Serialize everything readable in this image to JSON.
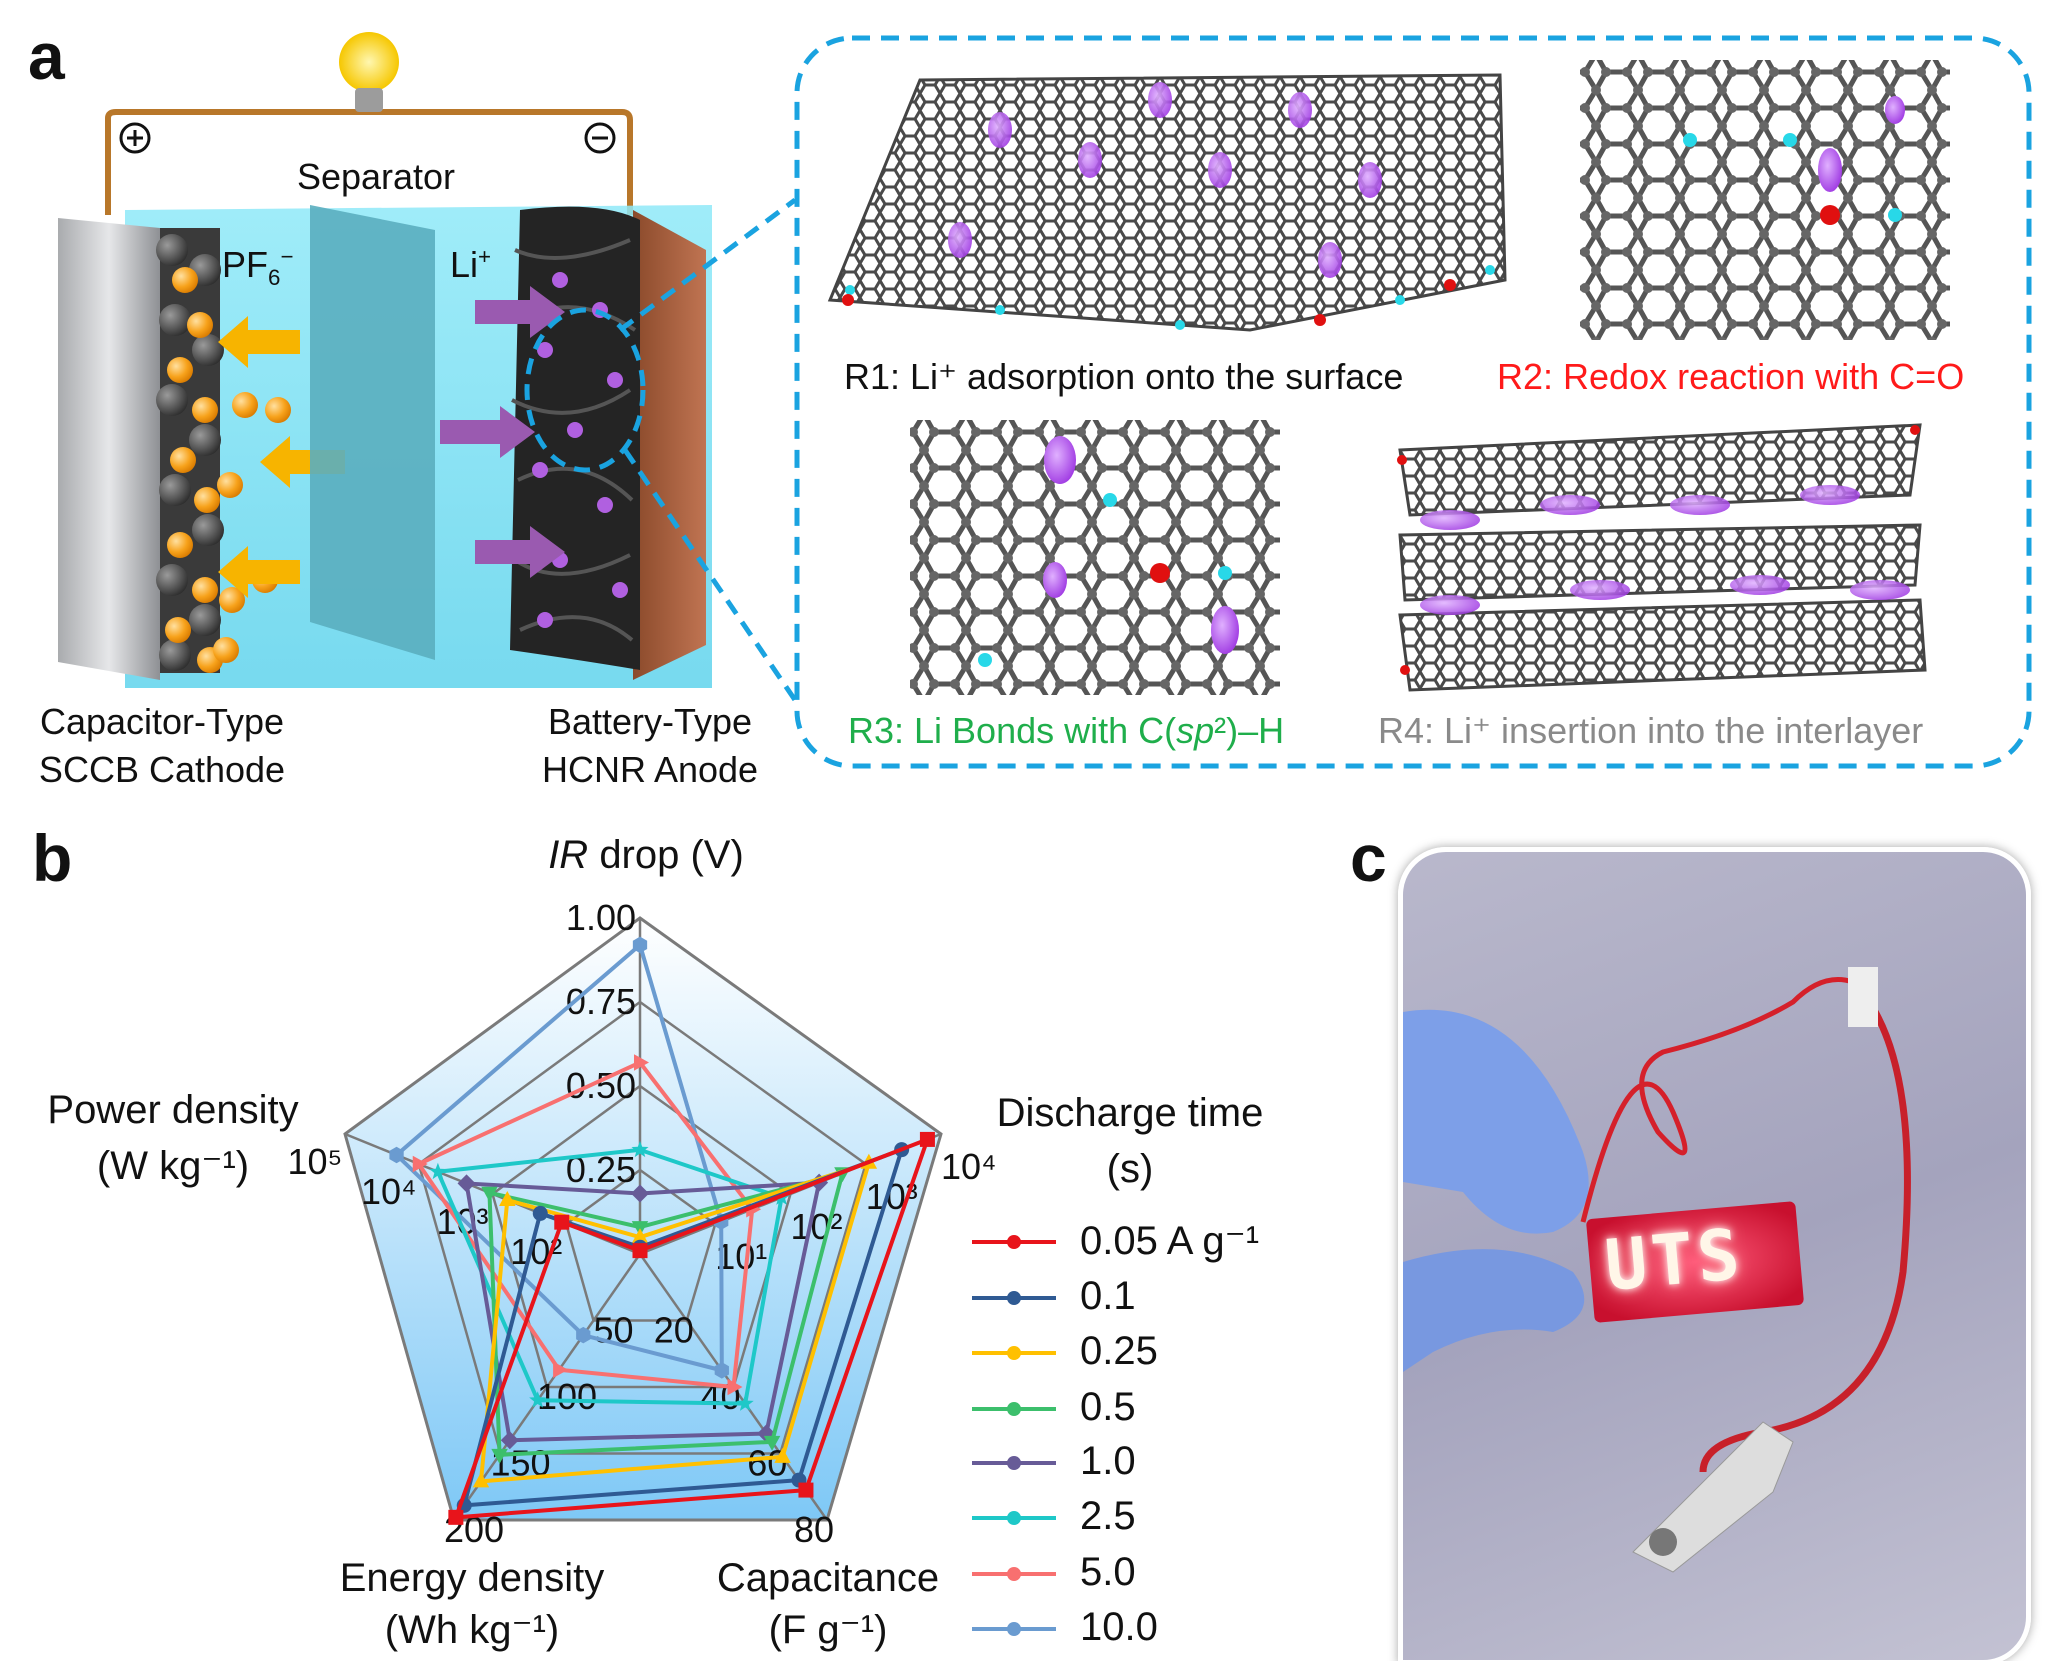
{
  "panel_a": {
    "label": "a",
    "separator_label": "Separator",
    "anion": {
      "base": "PF",
      "sub": "6",
      "sup": "−"
    },
    "cation": {
      "base": "Li",
      "sup": "+"
    },
    "cathode_label": [
      "Capacitor-Type",
      "SCCB Cathode"
    ],
    "anode_label": [
      "Battery-Type",
      "HCNR Anode"
    ],
    "reactions": [
      {
        "text": "R1: Li⁺ adsorption onto the surface",
        "color": "#111111"
      },
      {
        "text": "R2: Redox reaction with C=O",
        "color": "#ff1a1a"
      },
      {
        "pre": "R3: Li Bonds with C(",
        "italic": "sp",
        "post": "²)–H",
        "color": "#1fae4b"
      },
      {
        "text": "R4: Li⁺ insertion into the interlayer",
        "color": "#8a8a8a"
      }
    ],
    "colors": {
      "electrolyte": "#7fe3f5",
      "callout_border": "#1aa3e0",
      "cation": "#a040e0",
      "anion": "#f7a21b"
    }
  },
  "panel_b": {
    "label": "b"
  },
  "panel_c": {
    "label": "c",
    "led_text": "UTS"
  },
  "chart_data": {
    "type": "radar",
    "axes": [
      {
        "name": "IR drop (V)",
        "label_lines": [
          "drop (V)"
        ],
        "italic_prefix": "IR",
        "scale": "linear",
        "range": [
          0,
          1
        ],
        "ticks": [
          "0.25",
          "0.50",
          "0.75",
          "1.00"
        ]
      },
      {
        "name": "Discharge time (s)",
        "label_lines": [
          "Discharge time",
          "(s)"
        ],
        "scale": "log",
        "range": [
          1,
          10000
        ],
        "ticks": [
          "10¹",
          "10²",
          "10³",
          "10⁴"
        ]
      },
      {
        "name": "Capacitance (F g⁻¹)",
        "label_lines": [
          "Capacitance",
          "(F g⁻¹)"
        ],
        "scale": "linear",
        "range": [
          0,
          80
        ],
        "ticks": [
          "20",
          "40",
          "60",
          "80"
        ]
      },
      {
        "name": "Energy density (Wh kg⁻¹)",
        "label_lines": [
          "Energy density",
          "(Wh kg⁻¹)"
        ],
        "scale": "linear",
        "range": [
          0,
          200
        ],
        "ticks": [
          "50",
          "100",
          "150",
          "200"
        ]
      },
      {
        "name": "Power density (W kg⁻¹)",
        "label_lines": [
          "Power density",
          "(W kg⁻¹)"
        ],
        "scale": "log",
        "range": [
          10,
          100000
        ],
        "ticks": [
          "10²",
          "10³",
          "10⁴",
          "10⁵"
        ]
      }
    ],
    "series": [
      {
        "name": "0.05 A g⁻¹",
        "color": "#e8141b",
        "marker": "square",
        "values": [
          0.01,
          6600,
          71,
          198,
          115
        ]
      },
      {
        "name": "0.1",
        "color": "#2f5a93",
        "marker": "circle",
        "values": [
          0.02,
          3000,
          68,
          189,
          225
        ]
      },
      {
        "name": "0.25",
        "color": "#ffc000",
        "marker": "triangle-up",
        "values": [
          0.05,
          1100,
          61,
          171,
          630
        ]
      },
      {
        "name": "0.5",
        "color": "#3cbf6c",
        "marker": "triangle-down",
        "values": [
          0.08,
          490,
          56.5,
          151,
          1100
        ]
      },
      {
        "name": "1.0",
        "color": "#675b97",
        "marker": "diamond",
        "values": [
          0.18,
          240,
          54,
          140,
          2250
        ]
      },
      {
        "name": "2.5",
        "color": "#1ec8c8",
        "marker": "star",
        "values": [
          0.31,
          76,
          45,
          110,
          5500
        ]
      },
      {
        "name": "5.0",
        "color": "#f87070",
        "marker": "triangle-right",
        "values": [
          0.57,
          31,
          40,
          87,
          10000
        ]
      },
      {
        "name": "10.0",
        "color": "#6a9bd0",
        "marker": "hexagon",
        "values": [
          0.92,
          12,
          35,
          61,
          20000
        ]
      }
    ],
    "legend_position": "right",
    "grid": true
  }
}
